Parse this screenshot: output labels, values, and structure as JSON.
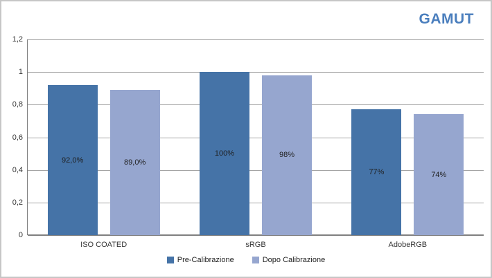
{
  "chart_data": {
    "type": "bar",
    "title": "GAMUT",
    "title_color": "#4a7ebd",
    "categories": [
      "ISO COATED",
      "sRGB",
      "AdobeRGB"
    ],
    "series": [
      {
        "name": "Pre-Calibrazione",
        "color": "#4573a7",
        "values": [
          0.92,
          1.0,
          0.77
        ],
        "data_labels": [
          "92,0%",
          "100%",
          "77%"
        ]
      },
      {
        "name": "Dopo Calibrazione",
        "color": "#96a6cf",
        "values": [
          0.89,
          0.98,
          0.74
        ],
        "data_labels": [
          "89,0%",
          "98%",
          "74%"
        ]
      }
    ],
    "y_axis": {
      "min": 0,
      "max": 1.2,
      "interval": 0.2,
      "tick_labels": [
        "0",
        "0,2",
        "0,4",
        "0,6",
        "0,8",
        "1",
        "1,2"
      ]
    },
    "grid": true,
    "legend_position": "bottom"
  }
}
